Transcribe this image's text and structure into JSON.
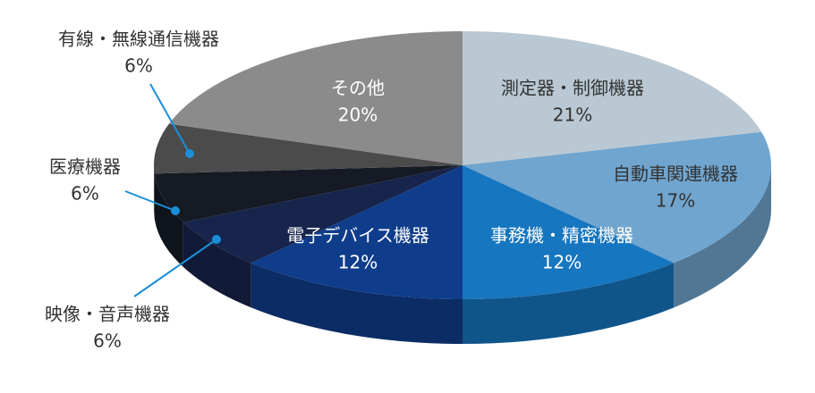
{
  "chart_data": {
    "type": "pie",
    "categories": [
      "測定器・制御機器",
      "自動車関連機器",
      "事務機・精密機器",
      "電子デバイス機器",
      "映像・音声機器",
      "医療機器",
      "有線・無線通信機器",
      "その他"
    ],
    "values": [
      21,
      17,
      12,
      12,
      6,
      6,
      6,
      20
    ],
    "value_labels": [
      "21%",
      "17%",
      "12%",
      "12%",
      "6%",
      "6%",
      "6%",
      "20%"
    ],
    "colors": [
      "#b9c8d2",
      "#70a5cf",
      "#1676c0",
      "#0f3d8b",
      "#17244b",
      "#151a25",
      "#4b4b4b",
      "#8b8b8b"
    ]
  }
}
